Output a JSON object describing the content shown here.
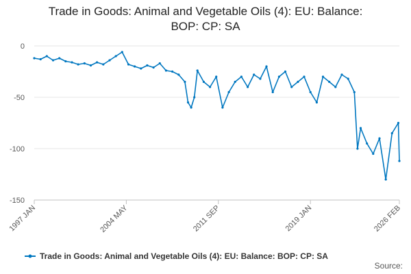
{
  "chart_data": {
    "type": "line",
    "title": "Trade in Goods: Animal and Vegetable Oils (4): EU: Balance: BOP: CP: SA",
    "title_lines": [
      "Trade in Goods: Animal and Vegetable Oils (4): EU: Balance:",
      "BOP: CP: SA"
    ],
    "xlabel": "",
    "ylabel": "",
    "ylim": [
      -150,
      0
    ],
    "yticks": [
      0,
      -50,
      -100,
      -150
    ],
    "xlim": [
      1997.0,
      2026.083
    ],
    "xticks": [
      {
        "label": "1997 JAN",
        "value": 1997.0
      },
      {
        "label": "2004 MAY",
        "value": 2004.333
      },
      {
        "label": "2011 SEP",
        "value": 2011.667
      },
      {
        "label": "2019 JAN",
        "value": 2019.0
      },
      {
        "label": "2026 FEB",
        "value": 2026.083
      }
    ],
    "grid": true,
    "legend_position": "bottom",
    "color": "#0077c0",
    "series": [
      {
        "name": "Trade in Goods: Animal and Vegetable Oils (4): EU: Balance: BOP: CP: SA",
        "x": [
          1997.0,
          1997.5,
          1998.0,
          1998.5,
          1999.0,
          1999.5,
          2000.0,
          2000.5,
          2001.0,
          2001.5,
          2002.0,
          2002.5,
          2003.0,
          2003.5,
          2004.0,
          2004.5,
          2005.0,
          2005.5,
          2006.0,
          2006.5,
          2007.0,
          2007.5,
          2008.0,
          2008.5,
          2009.0,
          2009.25,
          2009.5,
          2009.75,
          2010.0,
          2010.5,
          2011.0,
          2011.5,
          2012.0,
          2012.5,
          2013.0,
          2013.5,
          2014.0,
          2014.5,
          2015.0,
          2015.5,
          2016.0,
          2016.5,
          2017.0,
          2017.5,
          2018.0,
          2018.5,
          2019.0,
          2019.5,
          2020.0,
          2020.5,
          2021.0,
          2021.5,
          2022.0,
          2022.5,
          2022.75,
          2023.0,
          2023.5,
          2024.0,
          2024.5,
          2025.0,
          2025.5,
          2026.0,
          2026.083
        ],
        "values": [
          -12,
          -13,
          -10,
          -14,
          -12,
          -15,
          -16,
          -18,
          -17,
          -19,
          -16,
          -18,
          -14,
          -10,
          -6,
          -18,
          -20,
          -22,
          -19,
          -21,
          -17,
          -24,
          -25,
          -28,
          -35,
          -55,
          -60,
          -50,
          -24,
          -35,
          -40,
          -30,
          -60,
          -45,
          -35,
          -30,
          -40,
          -28,
          -32,
          -20,
          -45,
          -30,
          -25,
          -40,
          -35,
          -30,
          -45,
          -55,
          -30,
          -35,
          -40,
          -28,
          -32,
          -45,
          -100,
          -80,
          -95,
          -105,
          -90,
          -130,
          -85,
          -75,
          -112
        ]
      }
    ]
  },
  "footer": {
    "source": "Source:"
  }
}
